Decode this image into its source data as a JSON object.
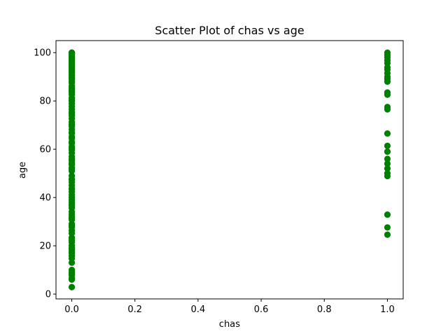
{
  "chart_data": {
    "type": "scatter",
    "title": "Scatter Plot of chas vs age",
    "xlabel": "chas",
    "ylabel": "age",
    "xlim": [
      -0.05,
      1.05
    ],
    "ylim": [
      -2,
      105
    ],
    "xticks": [
      0.0,
      0.2,
      0.4,
      0.6,
      0.8,
      1.0
    ],
    "xtick_labels": [
      "0.0",
      "0.2",
      "0.4",
      "0.6",
      "0.8",
      "1.0"
    ],
    "yticks": [
      0,
      20,
      40,
      60,
      80,
      100
    ],
    "ytick_labels": [
      "0",
      "20",
      "40",
      "60",
      "80",
      "100"
    ],
    "grid": false,
    "marker_color": "#008000",
    "series": [
      {
        "x": [
          0,
          0,
          0,
          0,
          0,
          0,
          0,
          0,
          0,
          0,
          0,
          0,
          0,
          0,
          0,
          0,
          0,
          0,
          0,
          0,
          0,
          0,
          0,
          0,
          0,
          0,
          0,
          0,
          0,
          0,
          0,
          0,
          0,
          0,
          0,
          0,
          0,
          0,
          0,
          0,
          0,
          0,
          0,
          0,
          0,
          0,
          0,
          0,
          0,
          0,
          0,
          0,
          0,
          0,
          0,
          0,
          0,
          0,
          0,
          0,
          0,
          0,
          0,
          0,
          0,
          0,
          0,
          0,
          0,
          0,
          0,
          0,
          0,
          0,
          0,
          0,
          0,
          0,
          0,
          0,
          0,
          0,
          0,
          0,
          0,
          0,
          0,
          0,
          0,
          0,
          0,
          0,
          0,
          0,
          0,
          0,
          0,
          0,
          0,
          0,
          0,
          0,
          0,
          0,
          0,
          0,
          0,
          0,
          0,
          0,
          0,
          0,
          0,
          0,
          0,
          0,
          0,
          0,
          0,
          0,
          1,
          1,
          1,
          1,
          1,
          1,
          1,
          1,
          1,
          1,
          1,
          1,
          1,
          1,
          1,
          1,
          1,
          1,
          1,
          1,
          1,
          1,
          1,
          1,
          1,
          1
        ],
        "y": [
          2.9,
          6.0,
          6.5,
          7.8,
          8.4,
          9.0,
          10.0,
          13.0,
          15.8,
          17.0,
          17.5,
          18.4,
          19.1,
          20.1,
          21.4,
          22.3,
          23.4,
          26.3,
          27.7,
          28.4,
          29.1,
          30.8,
          32.0,
          33.0,
          34.1,
          35.7,
          37.2,
          38.1,
          40.0,
          41.1,
          42.4,
          43.7,
          45.0,
          46.3,
          47.6,
          49.0,
          51.0,
          52.3,
          53.6,
          54.2,
          56.0,
          57.0,
          58.5,
          59.7,
          61.1,
          62.5,
          63.1,
          64.5,
          65.2,
          66.6,
          68.2,
          69.5,
          70.4,
          71.3,
          72.7,
          73.9,
          74.8,
          76.5,
          77.7,
          78.9,
          79.9,
          81.2,
          82.6,
          83.5,
          84.1,
          85.4,
          86.3,
          87.6,
          88.2,
          89.1,
          89.8,
          90.6,
          91.5,
          92.2,
          92.9,
          93.6,
          94.1,
          94.6,
          95.0,
          95.4,
          95.8,
          96.2,
          96.6,
          97.0,
          97.3,
          97.6,
          97.9,
          98.2,
          98.5,
          98.8,
          99.1,
          99.3,
          99.5,
          99.7,
          99.9,
          100.0,
          100.0,
          100.0,
          99.6,
          98.0,
          96.9,
          94.3,
          91.8,
          89.3,
          84.7,
          80.3,
          75.4,
          70.0,
          67.0,
          60.3,
          55.3,
          51.8,
          47.4,
          43.4,
          39.0,
          36.6,
          31.3,
          25.2,
          23.0,
          14.7,
          24.6,
          27.6,
          32.9,
          48.9,
          50.0,
          52.0,
          54.0,
          56.0,
          59.0,
          61.4,
          66.5,
          76.5,
          77.5,
          82.6,
          83.5,
          88.0,
          89.0,
          90.0,
          91.5,
          93.0,
          93.9,
          95.6,
          96.8,
          98.0,
          99.0,
          100.0
        ]
      }
    ]
  }
}
